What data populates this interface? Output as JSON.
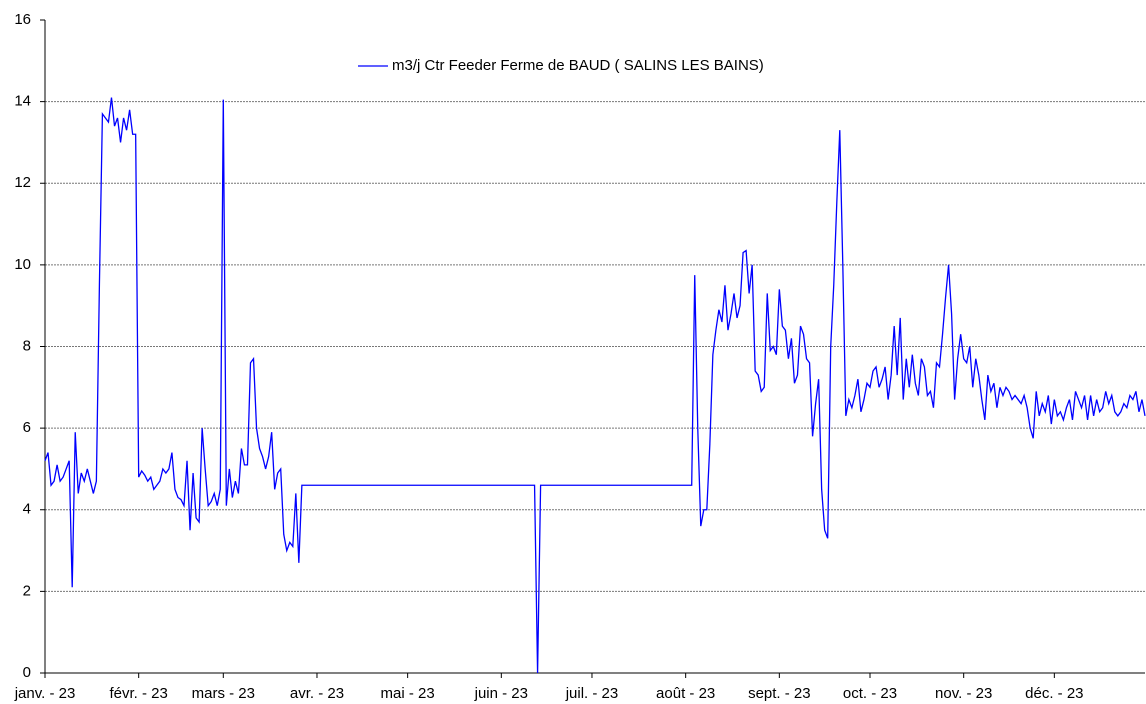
{
  "chart_data": {
    "type": "line",
    "legend_position": "top",
    "series": [
      {
        "name": "m3/j Ctr Feeder Ferme de BAUD ( SALINS LES BAINS)",
        "color": "#0000ff",
        "x": [
          0,
          1,
          2,
          3,
          4,
          5,
          6,
          7,
          8,
          9,
          10,
          11,
          12,
          13,
          14,
          15,
          16,
          17,
          18,
          19,
          20,
          21,
          22,
          23,
          24,
          25,
          26,
          27,
          28,
          29,
          30,
          31,
          32,
          33,
          34,
          35,
          36,
          37,
          38,
          39,
          40,
          41,
          42,
          43,
          44,
          45,
          46,
          47,
          48,
          49,
          50,
          51,
          52,
          53,
          54,
          55,
          56,
          57,
          58,
          59,
          60,
          61,
          62,
          63,
          64,
          65,
          66,
          67,
          68,
          69,
          70,
          71,
          72,
          73,
          74,
          75,
          76,
          77,
          78,
          79,
          80,
          81,
          82,
          83,
          84,
          85,
          162,
          163,
          164,
          214,
          215,
          216,
          217,
          218,
          219,
          220,
          221,
          222,
          223,
          224,
          225,
          226,
          227,
          228,
          229,
          230,
          231,
          232,
          233,
          234,
          235,
          236,
          237,
          238,
          239,
          240,
          241,
          242,
          243,
          244,
          245,
          246,
          247,
          248,
          249,
          250,
          251,
          252,
          253,
          254,
          255,
          256,
          257,
          258,
          259,
          260,
          261,
          262,
          263,
          264,
          265,
          266,
          267,
          268,
          269,
          270,
          271,
          272,
          273,
          274,
          275,
          276,
          277,
          278,
          279,
          280,
          281,
          282,
          283,
          284,
          285,
          286,
          287,
          288,
          289,
          290,
          291,
          292,
          293,
          294,
          295,
          296,
          297,
          298,
          299,
          300,
          301,
          302,
          303,
          304,
          305,
          306,
          307,
          308,
          309,
          310,
          311,
          312,
          313,
          314,
          315,
          316,
          317,
          318,
          319,
          320,
          321,
          322,
          323,
          324,
          325,
          326,
          327,
          328,
          329,
          330,
          331,
          332,
          333,
          334,
          335,
          336,
          337,
          338,
          339,
          340,
          341,
          342,
          343,
          344,
          345,
          346,
          347,
          348,
          349,
          350,
          351,
          352,
          353,
          354,
          355,
          356,
          357,
          358,
          359,
          360,
          361,
          362,
          363,
          364
        ],
        "values": [
          5.2,
          5.4,
          4.6,
          4.7,
          5.1,
          4.7,
          4.8,
          5.0,
          5.2,
          2.1,
          5.9,
          4.4,
          4.9,
          4.7,
          5.0,
          4.7,
          4.4,
          4.7,
          9.5,
          13.7,
          13.6,
          13.5,
          14.1,
          13.4,
          13.6,
          13.0,
          13.6,
          13.3,
          13.8,
          13.2,
          13.2,
          4.8,
          4.95,
          4.85,
          4.7,
          4.8,
          4.5,
          4.6,
          4.7,
          5.0,
          4.9,
          5.0,
          5.4,
          4.5,
          4.3,
          4.25,
          4.1,
          5.2,
          3.5,
          4.9,
          3.8,
          3.7,
          6.0,
          5.0,
          4.1,
          4.2,
          4.4,
          4.1,
          4.5,
          14.05,
          4.1,
          5.0,
          4.3,
          4.7,
          4.4,
          5.5,
          5.1,
          5.1,
          7.6,
          7.7,
          6.0,
          5.5,
          5.3,
          5.0,
          5.3,
          5.9,
          4.5,
          4.9,
          5.0,
          3.4,
          3.0,
          3.2,
          3.1,
          4.4,
          2.7,
          4.6,
          4.6,
          0,
          4.6,
          4.6,
          9.75,
          6.0,
          3.6,
          4.0,
          4.0,
          5.6,
          7.8,
          8.4,
          8.9,
          8.6,
          9.5,
          8.4,
          8.8,
          9.3,
          8.7,
          9.0,
          10.3,
          10.35,
          9.3,
          10.0,
          7.4,
          7.3,
          6.9,
          7.0,
          9.3,
          7.9,
          8.0,
          7.8,
          9.4,
          8.5,
          8.4,
          7.7,
          8.2,
          7.1,
          7.3,
          8.5,
          8.3,
          7.7,
          7.6,
          5.8,
          6.6,
          7.2,
          4.5,
          3.5,
          3.3,
          8.0,
          9.5,
          11.5,
          13.3,
          10.0,
          6.3,
          6.7,
          6.5,
          6.8,
          7.2,
          6.4,
          6.7,
          7.1,
          7.0,
          7.4,
          7.5,
          7.0,
          7.2,
          7.5,
          6.7,
          7.3,
          8.5,
          7.3,
          8.7,
          6.7,
          7.7,
          7.0,
          7.8,
          7.1,
          6.8,
          7.7,
          7.5,
          6.8,
          6.9,
          6.5,
          7.6,
          7.5,
          8.3,
          9.2,
          10.0,
          8.8,
          6.7,
          7.7,
          8.3,
          7.7,
          7.6,
          8.0,
          7.0,
          7.7,
          7.3,
          6.7,
          6.2,
          7.3,
          6.9,
          7.1,
          6.5,
          7.0,
          6.8,
          7.0,
          6.9,
          6.7,
          6.8,
          6.7,
          6.6,
          6.8,
          6.5,
          6.0,
          5.75,
          6.9,
          6.3,
          6.6,
          6.4,
          6.8,
          6.1,
          6.7,
          6.3,
          6.4,
          6.2,
          6.5,
          6.7,
          6.2,
          6.9,
          6.7,
          6.5,
          6.8,
          6.2,
          6.8,
          6.3,
          6.7,
          6.4,
          6.5,
          6.9,
          6.6,
          6.8,
          6.4,
          6.3,
          6.4,
          6.6,
          6.5,
          6.8,
          6.7,
          6.9,
          6.4,
          6.7,
          6.3
        ]
      }
    ],
    "xlim": [
      0,
      364
    ],
    "xticks": [
      {
        "value": 0,
        "label": "janv. - 23"
      },
      {
        "value": 31,
        "label": "févr. - 23"
      },
      {
        "value": 59,
        "label": "mars - 23"
      },
      {
        "value": 90,
        "label": "avr. - 23"
      },
      {
        "value": 120,
        "label": "mai - 23"
      },
      {
        "value": 151,
        "label": "juin - 23"
      },
      {
        "value": 181,
        "label": "juil. - 23"
      },
      {
        "value": 212,
        "label": "août - 23"
      },
      {
        "value": 243,
        "label": "sept. - 23"
      },
      {
        "value": 273,
        "label": "oct. - 23"
      },
      {
        "value": 304,
        "label": "nov. - 23"
      },
      {
        "value": 334,
        "label": "déc. - 23"
      }
    ],
    "ylim": [
      0,
      16
    ],
    "yticks": [
      0,
      2,
      4,
      6,
      8,
      10,
      12,
      14,
      16
    ],
    "grid": true
  }
}
